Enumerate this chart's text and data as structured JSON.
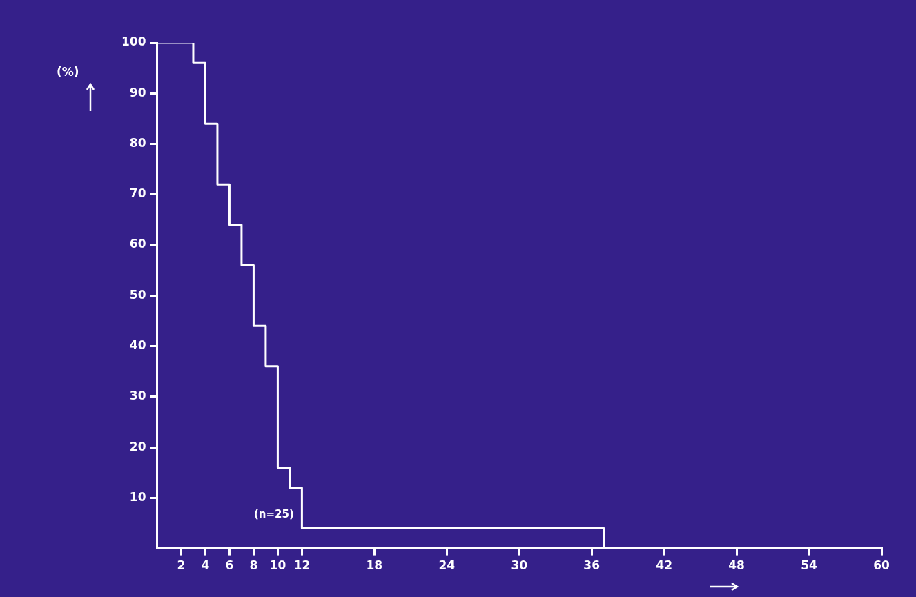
{
  "chart_data": {
    "type": "step",
    "ylabel": "(%)",
    "annotations": [
      "(n=25)"
    ],
    "series": [
      {
        "color": "#ffffff",
        "x": [
          0,
          3,
          4,
          5,
          6,
          7,
          8,
          9,
          10,
          11,
          12,
          37
        ],
        "values": [
          100,
          96,
          84,
          72,
          64,
          56,
          44,
          36,
          16,
          12,
          4,
          0
        ]
      }
    ],
    "xlim": [
      0,
      60
    ],
    "xticks": [
      2,
      4,
      6,
      8,
      10,
      12,
      18,
      24,
      30,
      36,
      42,
      48,
      54,
      60
    ],
    "ylim": [
      0,
      100
    ],
    "yticks": [
      10,
      20,
      30,
      40,
      50,
      60,
      70,
      80,
      90,
      100
    ],
    "grid": false,
    "legend": false,
    "marker": "none"
  }
}
